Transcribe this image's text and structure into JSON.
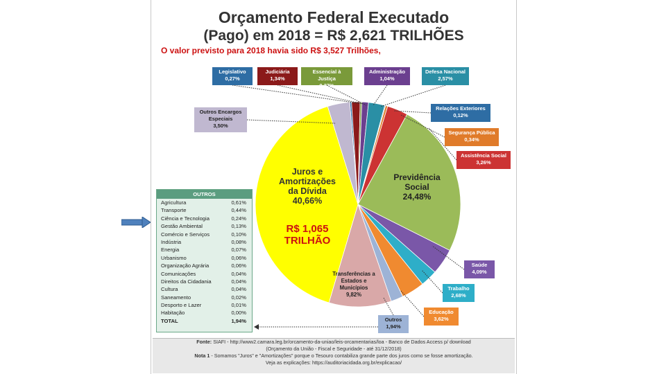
{
  "header": {
    "title_line1": "Orçamento Federal Executado",
    "title_line2": "(Pago) em 2018 = R$ 2,621 TRILHÕES",
    "subtitle": "O valor previsto para 2018 havia sido R$ 3,527 Trilhões,"
  },
  "chart_data": {
    "type": "pie",
    "title": "Orçamento Federal Executado (Pago) em 2018 = R$ 2,621 TRILHÕES",
    "slices": [
      {
        "name": "Legislativo",
        "value": 0.27,
        "label": "0,27%",
        "color": "#2e6da4"
      },
      {
        "name": "Judiciária",
        "value": 1.34,
        "label": "1,34%",
        "color": "#8b1a1a"
      },
      {
        "name": "Essencial à Justiça",
        "value": 0.27,
        "label": "0,27%",
        "color": "#7a9a3a"
      },
      {
        "name": "Administração",
        "value": 1.04,
        "label": "1,04%",
        "color": "#6b3f8f"
      },
      {
        "name": "Defesa Nacional",
        "value": 2.57,
        "label": "2,57%",
        "color": "#2a8fa5"
      },
      {
        "name": "Relações Exteriores",
        "value": 0.12,
        "label": "0,12%",
        "color": "#2e6da4"
      },
      {
        "name": "Segurança Pública",
        "value": 0.34,
        "label": "0,34%",
        "color": "#e07b2a"
      },
      {
        "name": "Assistência Social",
        "value": 3.26,
        "label": "3,26%",
        "color": "#cc3333"
      },
      {
        "name": "Previdência Social",
        "value": 24.48,
        "label": "24,48%",
        "color": "#9bbb59"
      },
      {
        "name": "Saúde",
        "value": 4.09,
        "label": "4,09%",
        "color": "#7a57a8"
      },
      {
        "name": "Trabalho",
        "value": 2.68,
        "label": "2,68%",
        "color": "#2eaec8"
      },
      {
        "name": "Educação",
        "value": 3.62,
        "label": "3,62%",
        "color": "#f08a30"
      },
      {
        "name": "Outros",
        "value": 1.94,
        "label": "1,94%",
        "color": "#9db3d6"
      },
      {
        "name": "Transferências a Estados e Municípios",
        "value": 9.82,
        "label": "9,82%",
        "color": "#d9a8a8"
      },
      {
        "name": "Juros e Amortizações da Dívida",
        "value": 40.66,
        "label": "40,66%",
        "color": "#ffff00"
      },
      {
        "name": "Outros Encargos Especiais",
        "value": 3.5,
        "label": "3,50%",
        "color": "#c0b8d0"
      }
    ],
    "inner_labels": {
      "juros": [
        "Juros e",
        "Amortizações",
        "da Dívida",
        "40,66%"
      ],
      "juros_value": [
        "R$ 1,065",
        "TRILHÃO"
      ],
      "previdencia": [
        "Previdência",
        "Social",
        "24,48%"
      ],
      "transferencias": [
        "Transferências a",
        "Estados e",
        "Municípios",
        "9,82%"
      ]
    }
  },
  "callouts": {
    "legislativo": [
      "Legislativo",
      "0,27%"
    ],
    "judiciaria": [
      "Judiciária",
      "1,34%"
    ],
    "essencial": [
      "Essencial à Justiça",
      "0,27%"
    ],
    "administracao": [
      "Administração",
      "1,04%"
    ],
    "defesa": [
      "Defesa Nacional",
      "2,57%"
    ],
    "relacoes": [
      "Relações Exteriores",
      "0,12%"
    ],
    "seguranca": [
      "Segurança Pública",
      "0,34%"
    ],
    "assistencia": [
      "Assistência Social",
      "3,26%"
    ],
    "saude": [
      "Saúde",
      "4,09%"
    ],
    "trabalho": [
      "Trabalho",
      "2,68%"
    ],
    "educacao": [
      "Educação",
      "3,62%"
    ],
    "outros": [
      "Outros",
      "1,94%"
    ],
    "encargos": [
      "Outros Encargos",
      "Especiais",
      "3,50%"
    ]
  },
  "outros_table": {
    "header": "OUTROS",
    "rows": [
      {
        "name": "Agricultura",
        "value": "0,61%"
      },
      {
        "name": "Transporte",
        "value": "0,44%"
      },
      {
        "name": "Ciência e Tecnologia",
        "value": "0,24%"
      },
      {
        "name": "Gestão Ambiental",
        "value": "0,13%"
      },
      {
        "name": "Comércio e Serviços",
        "value": "0,10%"
      },
      {
        "name": "Indústria",
        "value": "0,08%"
      },
      {
        "name": "Energia",
        "value": "0,07%"
      },
      {
        "name": "Urbanismo",
        "value": "0,06%"
      },
      {
        "name": "Organização Agrária",
        "value": "0,06%"
      },
      {
        "name": "Comunicações",
        "value": "0,04%"
      },
      {
        "name": "Direitos da Cidadania",
        "value": "0,04%"
      },
      {
        "name": "Cultura",
        "value": "0,04%"
      },
      {
        "name": "Saneamento",
        "value": "0,02%"
      },
      {
        "name": "Desporto e Lazer",
        "value": "0,01%"
      },
      {
        "name": "Habitação",
        "value": "0,00%"
      }
    ],
    "total_label": "TOTAL",
    "total_value": "1,94%"
  },
  "footer": {
    "fonte_label": "Fonte:",
    "fonte_text": "SIAFI - http://www2.camara.leg.br/orcamento-da-uniao/leis-orcamentarias/loa - Banco de Dados Access p/ download",
    "fonte_text2": "(Orçamento da União - Fiscal e Seguridade - até 31/12/2018)",
    "nota_label": "Nota 1",
    "nota_text": "- Somamos \"Juros\" e \"Amortizações\" porque o Tesouro contabiliza grande parte dos juros como se fosse amortização.",
    "nota_text2": "Veja as explicações: https://auditoriacidada.org.br/explicacao/"
  }
}
